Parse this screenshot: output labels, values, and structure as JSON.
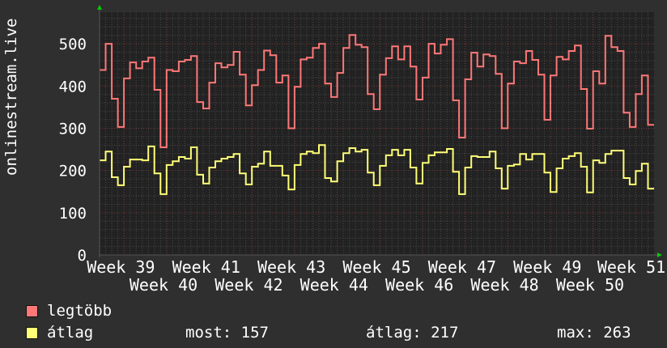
{
  "chart_data": {
    "type": "line",
    "step": true,
    "ylabel": "onlinestream.live",
    "ylim": [
      0,
      575
    ],
    "yticks": [
      0,
      100,
      200,
      300,
      400,
      500
    ],
    "xticks": [
      "Week 39",
      "Week 40",
      "Week 41",
      "Week 42",
      "Week 43",
      "Week 44",
      "Week 45",
      "Week 46",
      "Week 47",
      "Week 48",
      "Week 49",
      "Week 50",
      "Week 51"
    ],
    "grid": true,
    "series": [
      {
        "name": "legtöbb",
        "color": "#ff7777",
        "values": [
          438,
          500,
          370,
          303,
          418,
          456,
          442,
          458,
          467,
          391,
          255,
          438,
          435,
          458,
          462,
          471,
          362,
          347,
          408,
          454,
          444,
          450,
          481,
          427,
          354,
          402,
          438,
          484,
          473,
          408,
          425,
          300,
          398,
          463,
          467,
          490,
          500,
          406,
          374,
          431,
          490,
          521,
          498,
          492,
          381,
          345,
          427,
          466,
          494,
          463,
          494,
          446,
          368,
          420,
          500,
          477,
          498,
          511,
          366,
          278,
          416,
          479,
          446,
          475,
          471,
          429,
          300,
          406,
          458,
          454,
          483,
          462,
          427,
          320,
          425,
          469,
          463,
          483,
          496,
          393,
          299,
          435,
          406,
          519,
          492,
          483,
          337,
          303,
          381,
          425,
          308
        ]
      },
      {
        "name": "átlag",
        "color": "#ffff77",
        "values": [
          224,
          245,
          184,
          165,
          209,
          226,
          226,
          224,
          257,
          193,
          144,
          213,
          222,
          232,
          228,
          255,
          190,
          169,
          207,
          222,
          228,
          232,
          239,
          193,
          167,
          209,
          216,
          245,
          211,
          211,
          188,
          155,
          213,
          239,
          245,
          241,
          260,
          182,
          174,
          222,
          241,
          253,
          245,
          249,
          195,
          165,
          211,
          236,
          249,
          236,
          249,
          207,
          169,
          218,
          236,
          243,
          243,
          251,
          197,
          144,
          207,
          234,
          232,
          232,
          245,
          205,
          157,
          211,
          214,
          239,
          226,
          239,
          239,
          195,
          149,
          205,
          228,
          234,
          241,
          209,
          148,
          224,
          218,
          239,
          247,
          247,
          182,
          167,
          199,
          216,
          157
        ]
      }
    ]
  },
  "legend": {
    "series1": "legtöbb",
    "series2": "átlag",
    "most": "most: 157",
    "atlag": "átlag: 217",
    "max": "max: 263"
  },
  "colors": {
    "background": "#2f2f2f",
    "plot": "#222222",
    "grid_major": "#7a3a3a",
    "grid_minor": "#4a4a4a",
    "arrow": "#00cc00"
  }
}
